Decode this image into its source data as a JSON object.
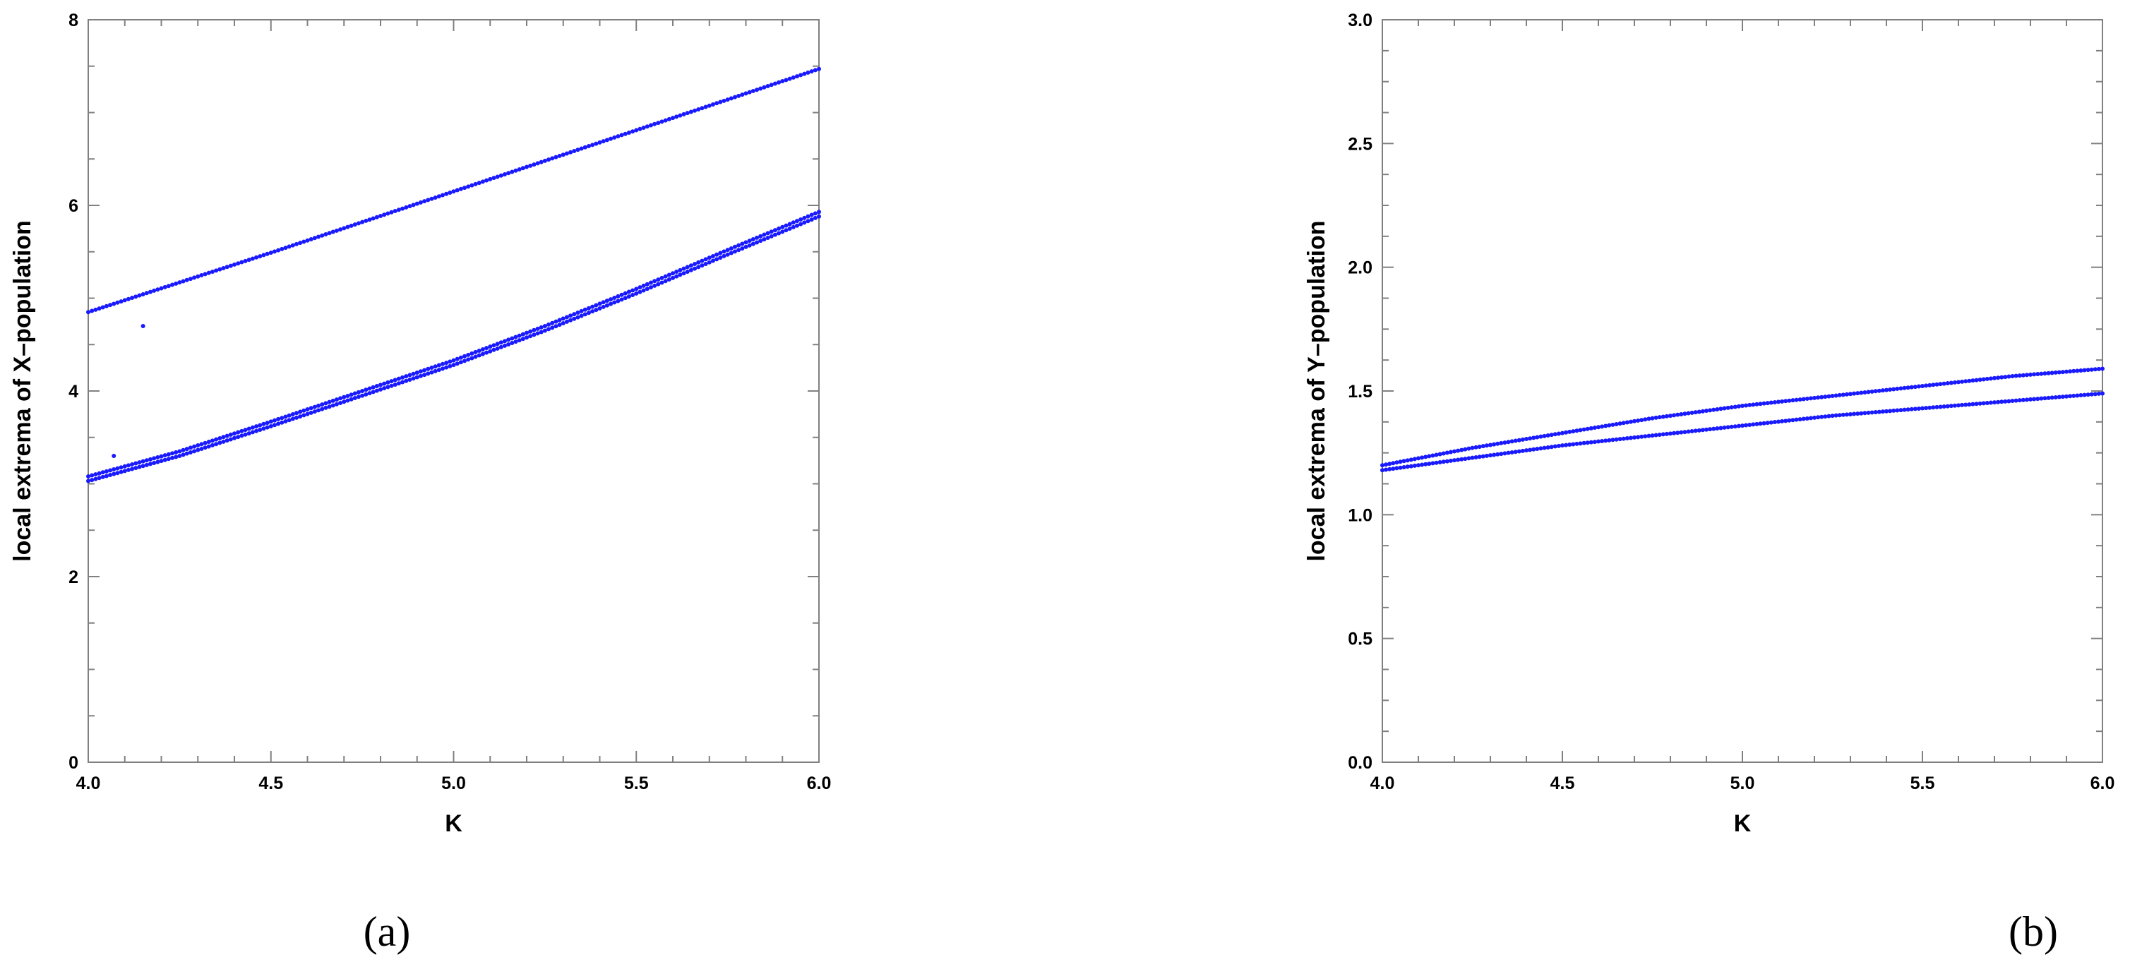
{
  "chart_data": [
    {
      "type": "scatter",
      "panel_label": "(a)",
      "xlabel": "K",
      "ylabel": "local extrema of X–population",
      "xlim": [
        4.0,
        6.0
      ],
      "ylim": [
        0,
        8
      ],
      "x_ticks": [
        "4.0",
        "4.5",
        "5.0",
        "5.5",
        "6.0"
      ],
      "y_ticks": [
        "0",
        "2",
        "4",
        "6",
        "8"
      ],
      "x_tick_values": [
        4.0,
        4.5,
        5.0,
        5.5,
        6.0
      ],
      "y_tick_values": [
        0,
        2,
        4,
        6,
        8
      ],
      "grid": false,
      "marker_color": "#1a1aff",
      "series": [
        {
          "x": [
            4.0,
            4.25,
            4.5,
            4.75,
            5.0,
            5.25,
            5.5,
            5.75,
            6.0
          ],
          "y": [
            4.85,
            5.17,
            5.49,
            5.82,
            6.15,
            6.48,
            6.81,
            7.14,
            7.47
          ]
        },
        {
          "x": [
            4.0,
            4.25,
            4.5,
            4.75,
            5.0,
            5.25,
            5.5,
            5.75,
            6.0
          ],
          "y": [
            3.08,
            3.35,
            3.67,
            4.0,
            4.33,
            4.7,
            5.1,
            5.52,
            5.93
          ]
        },
        {
          "x": [
            4.0,
            4.25,
            4.5,
            4.75,
            5.0,
            5.25,
            5.5,
            5.75,
            6.0
          ],
          "y": [
            3.03,
            3.3,
            3.62,
            3.95,
            4.28,
            4.65,
            5.05,
            5.47,
            5.88
          ]
        },
        {
          "x": [
            4.07,
            4.15
          ],
          "y": [
            3.3,
            4.7
          ]
        }
      ]
    },
    {
      "type": "scatter",
      "panel_label": "(b)",
      "xlabel": "K",
      "ylabel": "local extrema of Y–population",
      "xlim": [
        4.0,
        6.0
      ],
      "ylim": [
        0.0,
        3.0
      ],
      "x_ticks": [
        "4.0",
        "4.5",
        "5.0",
        "5.5",
        "6.0"
      ],
      "y_ticks": [
        "0.0",
        "0.5",
        "1.0",
        "1.5",
        "2.0",
        "2.5",
        "3.0"
      ],
      "x_tick_values": [
        4.0,
        4.5,
        5.0,
        5.5,
        6.0
      ],
      "y_tick_values": [
        0.0,
        0.5,
        1.0,
        1.5,
        2.0,
        2.5,
        3.0
      ],
      "grid": false,
      "marker_color": "#1a1aff",
      "series": [
        {
          "x": [
            4.0,
            4.25,
            4.5,
            4.75,
            5.0,
            5.25,
            5.5,
            5.75,
            6.0
          ],
          "y": [
            1.2,
            1.27,
            1.33,
            1.39,
            1.44,
            1.48,
            1.52,
            1.56,
            1.59
          ]
        },
        {
          "x": [
            4.0,
            4.25,
            4.5,
            4.75,
            5.0,
            5.25,
            5.5,
            5.75,
            6.0
          ],
          "y": [
            1.18,
            1.23,
            1.28,
            1.32,
            1.36,
            1.4,
            1.43,
            1.46,
            1.49
          ]
        }
      ]
    }
  ]
}
